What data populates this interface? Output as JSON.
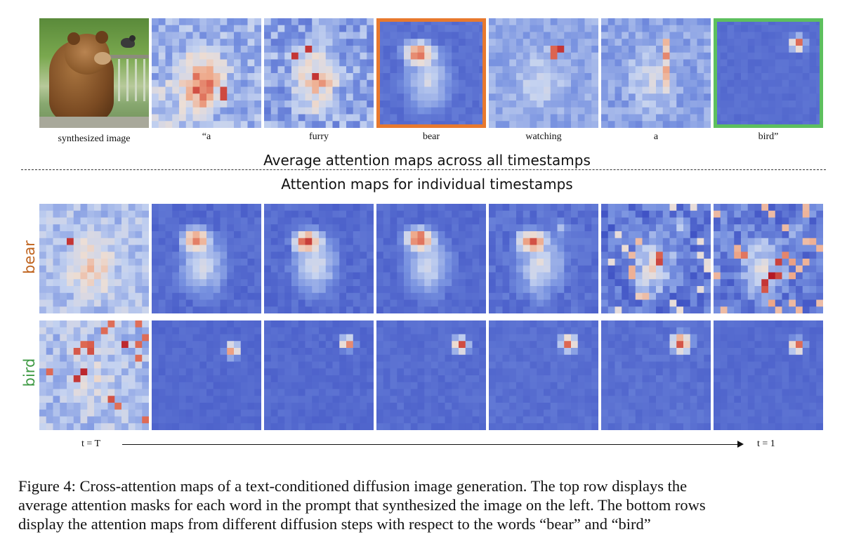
{
  "figure": {
    "top_captions": [
      "synthesized image",
      "“a",
      "furry",
      "bear",
      "watching",
      "a",
      "bird”"
    ],
    "heading_average": "Average attention maps across all timestamps",
    "heading_individual": "Attention maps for individual  timestamps",
    "row_labels": {
      "bear": "bear",
      "bird": "bird"
    },
    "highlight_colors": {
      "bear": "#e8792e",
      "bird": "#5dbf5e"
    },
    "timeline": {
      "start": "t = T",
      "end": "t = 1"
    },
    "caption_lines": [
      "Figure 4: Cross-attention maps of a text-conditioned diffusion image generation.  The top row displays the",
      "average attention masks for each word in the prompt that synthesized the image on the left. The bottom rows",
      "display the attention maps from different diffusion steps with respect to the words “bear” and “bird”"
    ]
  }
}
